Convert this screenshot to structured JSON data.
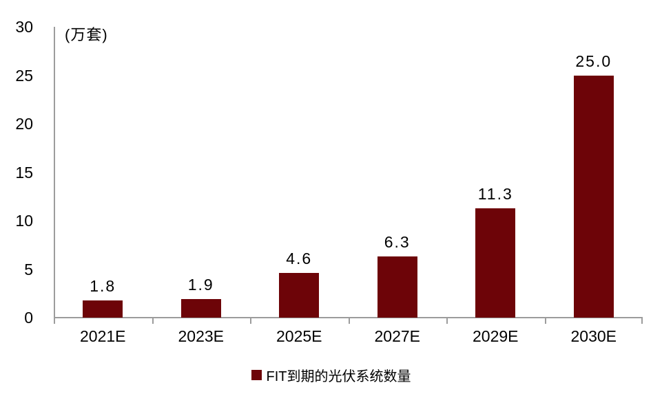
{
  "chart_data": {
    "type": "bar",
    "unit_label": "(万套)",
    "categories": [
      "2021E",
      "2023E",
      "2025E",
      "2027E",
      "2029E",
      "2030E"
    ],
    "values": [
      1.8,
      1.9,
      4.6,
      6.3,
      11.3,
      25.0
    ],
    "value_labels": [
      "1.8",
      "1.9",
      "4.6",
      "6.3",
      "11.3",
      "25.0"
    ],
    "ylim": [
      0,
      30
    ],
    "yticks": [
      0,
      5,
      10,
      15,
      20,
      25,
      30
    ],
    "grid": false,
    "legend_position": "bottom",
    "legend": [
      {
        "label": "FIT到期的光伏系统数量",
        "color": "#6D0408"
      }
    ],
    "bar_color": "#6D0408",
    "axis_color": "#9C9C9C",
    "text_color": "#000000",
    "background": "#FFFFFF"
  }
}
